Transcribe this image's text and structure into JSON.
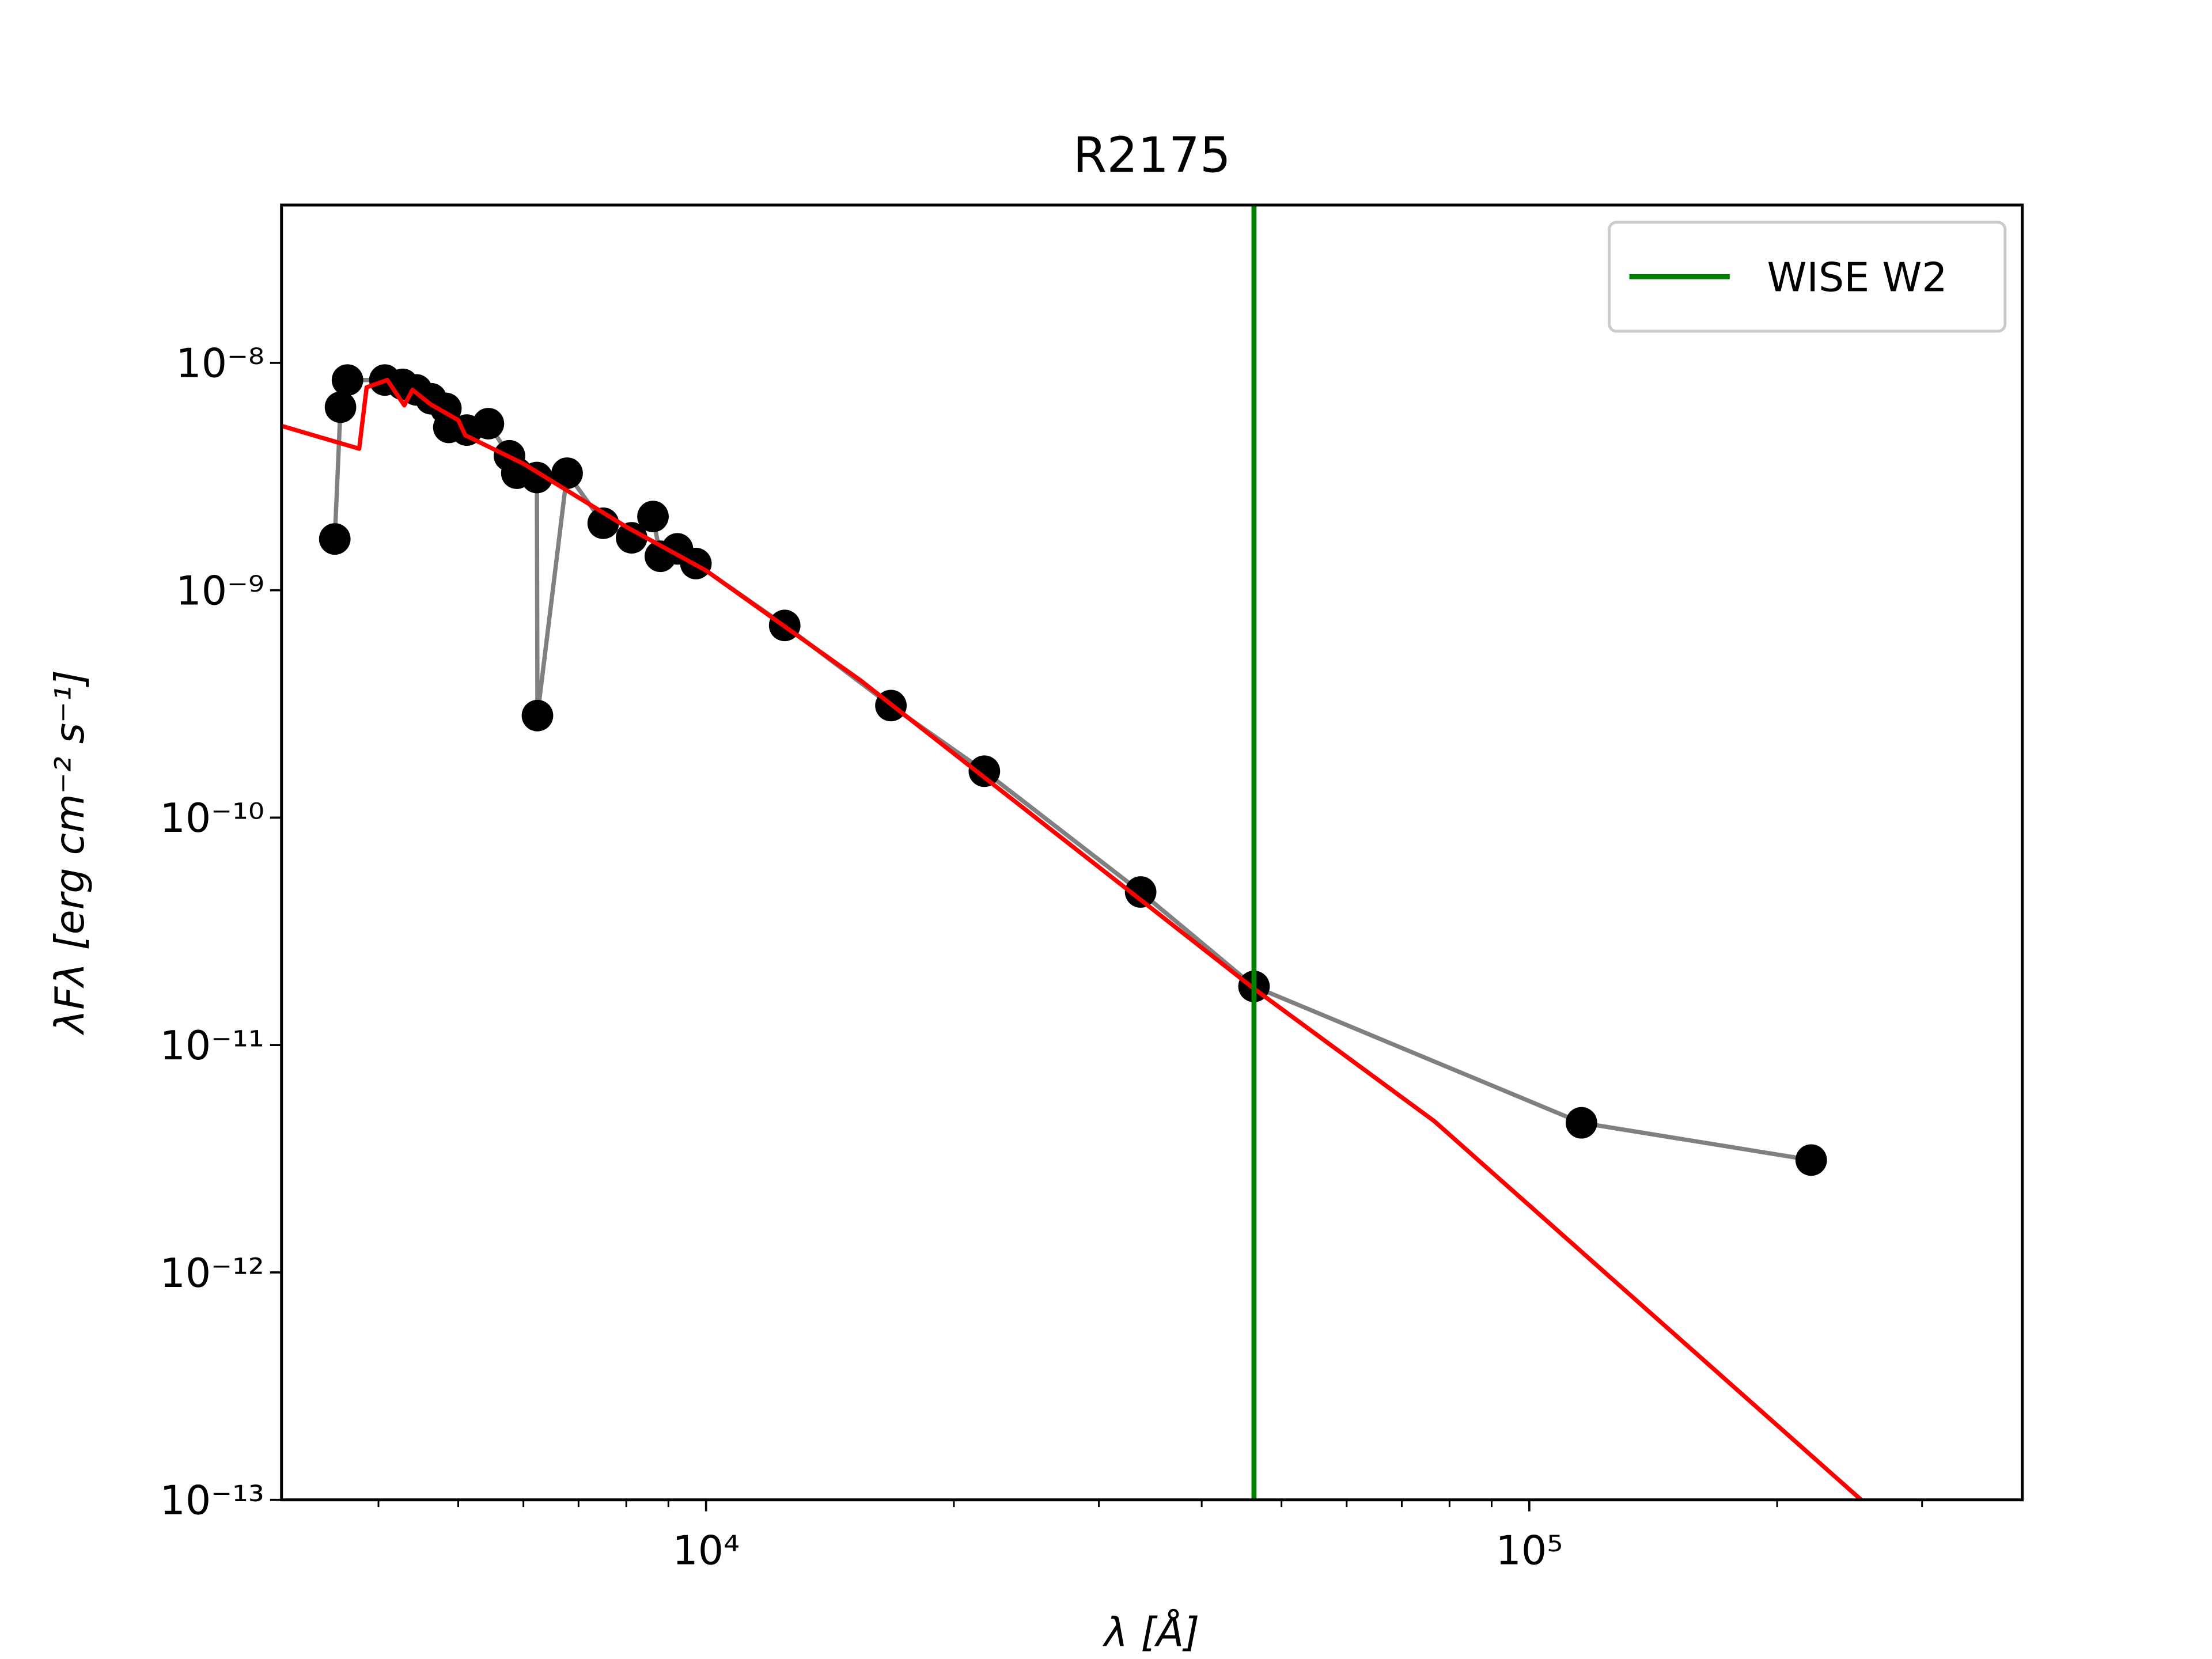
{
  "chart_data": {
    "type": "line",
    "title": "R2175",
    "x_label": "λ [Å]",
    "y_label": "λFλ [erg cm⁻² s⁻¹]",
    "xscale": "log",
    "yscale": "log",
    "xlim": [
      3050,
      397000
    ],
    "ylim": [
      1e-13,
      4.94e-08
    ],
    "xticks": [
      {
        "value": 10000,
        "label": "10⁴"
      },
      {
        "value": 100000,
        "label": "10⁵"
      }
    ],
    "xminorticks": [
      4000,
      5000,
      6000,
      7000,
      8000,
      9000,
      20000,
      30000,
      40000,
      50000,
      60000,
      70000,
      80000,
      90000,
      200000,
      300000
    ],
    "yticks": [
      {
        "value": 1e-13,
        "label": "10⁻¹³"
      },
      {
        "value": 1e-12,
        "label": "10⁻¹²"
      },
      {
        "value": 1e-11,
        "label": "10⁻¹¹"
      },
      {
        "value": 1e-10,
        "label": "10⁻¹⁰"
      },
      {
        "value": 1e-09,
        "label": "10⁻⁹"
      },
      {
        "value": 1e-08,
        "label": "10⁻⁸"
      }
    ],
    "series": [
      {
        "color": "#808080",
        "marker_color": "#000000",
        "x": [
          3540,
          3597,
          3668,
          4072,
          4280,
          4448,
          4634,
          4830,
          4870,
          5120,
          5440,
          5770,
          5890,
          6230,
          6240,
          6780,
          7500,
          8120,
          8620,
          8800,
          9230,
          9720,
          12460,
          16770,
          21780,
          33720,
          46300,
          115700,
          220000
        ],
        "values": [
          1.68e-09,
          6.38e-09,
          8.4e-09,
          8.4e-09,
          8.04e-09,
          7.6e-09,
          6.95e-09,
          6.3e-09,
          5.2e-09,
          5.06e-09,
          5.4e-09,
          3.9e-09,
          3.27e-09,
          3.13e-09,
          2.81e-10,
          3.27e-09,
          1.97e-09,
          1.7e-09,
          2.11e-09,
          1.41e-09,
          1.52e-09,
          1.31e-09,
          7e-10,
          3.11e-10,
          1.6e-10,
          4.71e-11,
          1.81e-11,
          4.55e-12,
          3.12e-12
        ]
      },
      {
        "color": "#ff0000",
        "x": [
          3050,
          3790,
          3870,
          4100,
          4300,
          4400,
          4630,
          5000,
          5100,
          6000,
          8000,
          10000,
          15420,
          46300,
          76700,
          253000
        ],
        "values": [
          5.28e-09,
          4.19e-09,
          7.8e-09,
          8.4e-09,
          6.5e-09,
          7.6e-09,
          6.56e-09,
          5.6e-09,
          4.8e-09,
          3.6e-09,
          1.9e-09,
          1.22e-09,
          4e-10,
          1.77e-11,
          4.62e-12,
          1e-13
        ]
      }
    ],
    "vlines": [
      {
        "name": "WISE W2",
        "color": "#008000",
        "x": 46300
      }
    ],
    "legend": "upper right"
  }
}
